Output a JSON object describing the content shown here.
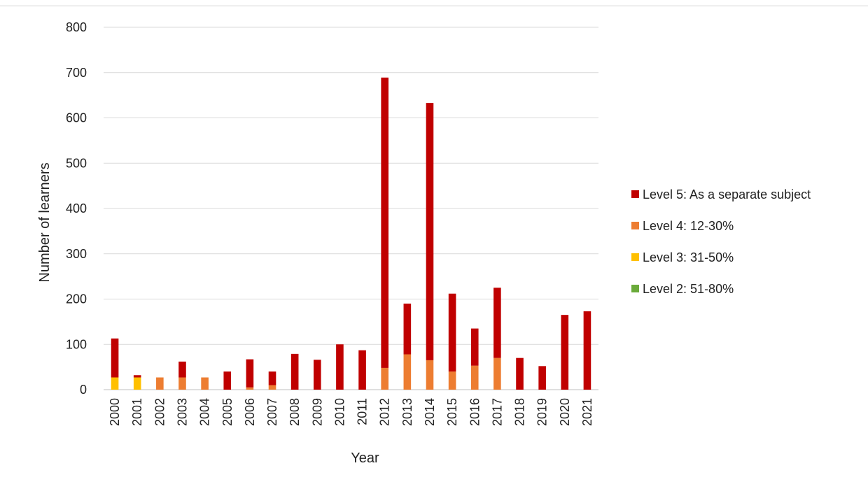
{
  "chart_data": {
    "type": "bar",
    "stacked": true,
    "title": "",
    "xlabel": "Year",
    "ylabel": "Number of learners",
    "ylim": [
      0,
      800
    ],
    "yticks": [
      0,
      100,
      200,
      300,
      400,
      500,
      600,
      700,
      800
    ],
    "grid": true,
    "legend_position": "right",
    "categories": [
      "2000",
      "2001",
      "2002",
      "2003",
      "2004",
      "2005",
      "2006",
      "2007",
      "2008",
      "2009",
      "2010",
      "2011",
      "2012",
      "2013",
      "2014",
      "2015",
      "2016",
      "2017",
      "2018",
      "2019",
      "2020",
      "2021"
    ],
    "series": [
      {
        "name": "Level 2: 51-80%",
        "color": "#6aaa3a",
        "values": [
          0,
          0,
          0,
          0,
          0,
          0,
          0,
          0,
          0,
          0,
          0,
          0,
          0,
          0,
          0,
          0,
          0,
          0,
          0,
          0,
          0,
          0
        ]
      },
      {
        "name": "Level 3: 31-50%",
        "color": "#ffc000",
        "values": [
          27,
          27,
          0,
          0,
          0,
          0,
          0,
          0,
          0,
          0,
          0,
          0,
          0,
          0,
          0,
          0,
          0,
          0,
          0,
          0,
          0,
          0
        ]
      },
      {
        "name": "Level 4: 12-30%",
        "color": "#ed7d31",
        "values": [
          0,
          0,
          27,
          27,
          27,
          0,
          5,
          10,
          0,
          0,
          0,
          0,
          48,
          78,
          65,
          40,
          53,
          70,
          0,
          0,
          0,
          0
        ]
      },
      {
        "name": "Level 5: As a separate subject",
        "color": "#c00000",
        "values": [
          86,
          5,
          0,
          35,
          0,
          40,
          62,
          30,
          79,
          66,
          100,
          87,
          641,
          112,
          568,
          172,
          82,
          155,
          70,
          52,
          165,
          173
        ]
      }
    ],
    "legend_order": [
      3,
      2,
      1,
      0
    ]
  }
}
